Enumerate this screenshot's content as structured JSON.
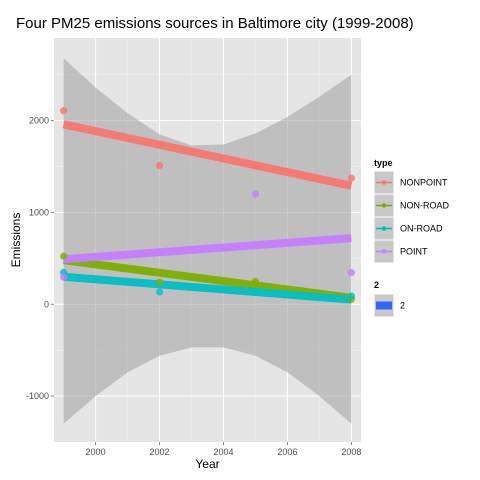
{
  "chart_data": {
    "type": "scatter",
    "title": "Four PM25 emissions sources in Baltimore city (1999-2008)",
    "xlabel": "Year",
    "ylabel": "Emissions",
    "xlim": [
      1998.7,
      2008.3
    ],
    "ylim": [
      -1500,
      2900
    ],
    "x_ticks": [
      2000,
      2002,
      2004,
      2006,
      2008
    ],
    "y_ticks": [
      -1000,
      0,
      1000,
      2000
    ],
    "grid": true,
    "legend_placement": "right",
    "series": [
      {
        "name": "NONPOINT",
        "color": "#f8766d",
        "points": [
          {
            "x": 1999,
            "y": 2108
          },
          {
            "x": 2002,
            "y": 1510
          },
          {
            "x": 2005,
            "y": 1510
          },
          {
            "x": 2008,
            "y": 1374
          }
        ],
        "fit": {
          "x": [
            1999,
            2008
          ],
          "y": [
            1960,
            1290
          ]
        }
      },
      {
        "name": "NON-ROAD",
        "color": "#7cae00",
        "points": [
          {
            "x": 1999,
            "y": 523
          },
          {
            "x": 2002,
            "y": 241
          },
          {
            "x": 2005,
            "y": 249
          },
          {
            "x": 2008,
            "y": 55
          }
        ],
        "fit": {
          "x": [
            1999,
            2008
          ],
          "y": [
            480,
            70
          ]
        }
      },
      {
        "name": "ON-ROAD",
        "color": "#00bfc4",
        "points": [
          {
            "x": 1999,
            "y": 347
          },
          {
            "x": 2002,
            "y": 134
          },
          {
            "x": 2005,
            "y": 130
          },
          {
            "x": 2008,
            "y": 89
          }
        ],
        "fit": {
          "x": [
            1999,
            2008
          ],
          "y": [
            300,
            50
          ]
        }
      },
      {
        "name": "POINT",
        "color": "#c77cff",
        "points": [
          {
            "x": 1999,
            "y": 296
          },
          {
            "x": 2002,
            "y": 569
          },
          {
            "x": 2005,
            "y": 1202
          },
          {
            "x": 2008,
            "y": 345
          }
        ],
        "fit": {
          "x": [
            1999,
            2008
          ],
          "y": [
            490,
            720
          ]
        }
      }
    ],
    "confidence_band": {
      "x": [
        1999,
        2000,
        2001,
        2002,
        2003,
        2004,
        2005,
        2006,
        2007,
        2008
      ],
      "upper": [
        2680,
        2360,
        2080,
        1850,
        1730,
        1740,
        1860,
        2040,
        2260,
        2500
      ],
      "lower": [
        -1300,
        -1000,
        -740,
        -560,
        -470,
        -470,
        -560,
        -740,
        -1000,
        -1300
      ]
    },
    "legend": {
      "type_title": "type",
      "type_entries": [
        "NONPOINT",
        "NON-ROAD",
        "ON-ROAD",
        "POINT"
      ],
      "size_title": "2",
      "size_entries": [
        "2"
      ],
      "size_color": "#3366ff"
    }
  }
}
